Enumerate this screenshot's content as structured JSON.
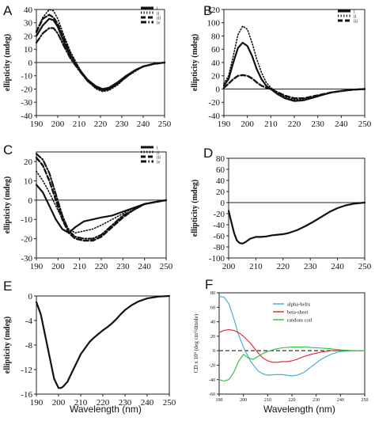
{
  "labels": {
    "A": "A",
    "B": "B",
    "C": "C",
    "D": "D",
    "E": "E",
    "F": "F",
    "wavelength_E": "Wavelength (nm)",
    "wavelength_F": "Wavelength (nm)"
  },
  "chart_data": [
    {
      "id": "A",
      "type": "line",
      "ylabel": "ellipticity (mdeg)",
      "xlim": [
        190,
        250
      ],
      "ylim": [
        -40,
        40
      ],
      "xticks": [
        190,
        200,
        210,
        220,
        230,
        240,
        250
      ],
      "yticks": [
        -40,
        -30,
        -20,
        -10,
        0,
        10,
        20,
        30,
        40
      ],
      "legend": [
        "i",
        "ii",
        "iii",
        "iv"
      ],
      "series": [
        {
          "name": "i",
          "style": "solid",
          "x": [
            190,
            193,
            196,
            198,
            200,
            203,
            206,
            210,
            214,
            218,
            221,
            224,
            228,
            232,
            236,
            240,
            245,
            250
          ],
          "y": [
            20,
            28,
            33,
            32,
            27,
            15,
            5,
            -5,
            -13,
            -18,
            -20,
            -19,
            -15,
            -10,
            -6,
            -3,
            -1,
            0
          ]
        },
        {
          "name": "ii",
          "style": "dotted",
          "x": [
            190,
            193,
            196,
            198,
            200,
            203,
            206,
            210,
            214,
            218,
            221,
            224,
            228,
            232,
            236,
            240,
            245,
            250
          ],
          "y": [
            24,
            34,
            40,
            39,
            33,
            20,
            8,
            -4,
            -14,
            -20,
            -22,
            -21,
            -17,
            -11,
            -7,
            -3,
            -1,
            0
          ]
        },
        {
          "name": "iii",
          "style": "dashed",
          "x": [
            190,
            193,
            196,
            198,
            200,
            203,
            206,
            210,
            214,
            218,
            221,
            224,
            228,
            232,
            236,
            240,
            245,
            250
          ],
          "y": [
            23,
            33,
            36,
            34,
            29,
            18,
            6,
            -5,
            -14,
            -19,
            -21,
            -20,
            -16,
            -11,
            -6,
            -3,
            -1,
            0
          ]
        },
        {
          "name": "iv",
          "style": "dashdot",
          "x": [
            190,
            193,
            196,
            198,
            200,
            203,
            206,
            210,
            214,
            218,
            221,
            224,
            228,
            232,
            236,
            240,
            245,
            250
          ],
          "y": [
            15,
            22,
            26,
            26,
            22,
            12,
            3,
            -6,
            -14,
            -19,
            -21,
            -20,
            -16,
            -11,
            -6,
            -3,
            -1,
            0
          ]
        }
      ]
    },
    {
      "id": "B",
      "type": "line",
      "ylabel": "ellipticity (mdeg)",
      "xlim": [
        190,
        250
      ],
      "ylim": [
        -40,
        120
      ],
      "xticks": [
        190,
        200,
        210,
        220,
        230,
        240,
        250
      ],
      "yticks": [
        -40,
        -20,
        0,
        20,
        40,
        60,
        80,
        100,
        120
      ],
      "legend": [
        "i",
        "ii",
        "iii"
      ],
      "series": [
        {
          "name": "i",
          "style": "solid",
          "x": [
            190,
            192,
            194,
            196,
            198,
            200,
            202,
            204,
            206,
            208,
            210,
            213,
            216,
            220,
            224,
            228,
            232,
            236,
            240,
            245,
            250
          ],
          "y": [
            5,
            15,
            40,
            62,
            70,
            65,
            50,
            30,
            15,
            5,
            0,
            -8,
            -14,
            -18,
            -17,
            -13,
            -9,
            -5,
            -3,
            -1,
            0
          ]
        },
        {
          "name": "ii",
          "style": "dotted",
          "x": [
            190,
            192,
            194,
            196,
            198,
            200,
            202,
            204,
            206,
            208,
            210,
            213,
            216,
            220,
            224,
            228,
            232,
            236,
            240,
            245,
            250
          ],
          "y": [
            8,
            20,
            50,
            82,
            95,
            90,
            70,
            45,
            25,
            10,
            2,
            -6,
            -12,
            -16,
            -15,
            -12,
            -8,
            -5,
            -3,
            -1,
            0
          ]
        },
        {
          "name": "iii",
          "style": "dashed",
          "x": [
            190,
            192,
            194,
            196,
            198,
            200,
            202,
            204,
            206,
            208,
            210,
            213,
            216,
            220,
            224,
            228,
            232,
            236,
            240,
            245,
            250
          ],
          "y": [
            2,
            8,
            15,
            20,
            21,
            20,
            16,
            10,
            5,
            2,
            0,
            -5,
            -10,
            -14,
            -14,
            -11,
            -8,
            -5,
            -3,
            -1,
            0
          ]
        }
      ]
    },
    {
      "id": "C",
      "type": "line",
      "ylabel": "ellipticity (mdeg)",
      "xlim": [
        190,
        250
      ],
      "ylim": [
        -30,
        25
      ],
      "xticks": [
        190,
        200,
        210,
        220,
        230,
        240,
        250
      ],
      "yticks": [
        -30,
        -20,
        -10,
        0,
        10,
        20
      ],
      "legend": [
        "i",
        "ii",
        "iii",
        "iv"
      ],
      "series": [
        {
          "name": "i",
          "style": "solid",
          "x": [
            190,
            193,
            196,
            199,
            202,
            205,
            208,
            212,
            216,
            220,
            225,
            230,
            235,
            240,
            245,
            250
          ],
          "y": [
            8,
            4,
            -3,
            -10,
            -15,
            -17,
            -14,
            -11,
            -10,
            -9,
            -8,
            -6,
            -4,
            -2,
            -1,
            0
          ]
        },
        {
          "name": "ii",
          "style": "dotted",
          "x": [
            190,
            193,
            196,
            199,
            202,
            205,
            208,
            212,
            216,
            220,
            225,
            230,
            235,
            240,
            245,
            250
          ],
          "y": [
            15,
            10,
            4,
            -3,
            -10,
            -15,
            -17,
            -16,
            -15,
            -13,
            -10,
            -7,
            -4,
            -2,
            -1,
            0
          ]
        },
        {
          "name": "iii",
          "style": "dashed",
          "x": [
            190,
            193,
            196,
            199,
            202,
            205,
            208,
            212,
            216,
            220,
            225,
            230,
            235,
            240,
            245,
            250
          ],
          "y": [
            22,
            18,
            10,
            0,
            -10,
            -17,
            -20,
            -21,
            -21,
            -19,
            -14,
            -9,
            -5,
            -2,
            -1,
            0
          ]
        },
        {
          "name": "iv",
          "style": "dashdot",
          "x": [
            190,
            193,
            196,
            199,
            202,
            205,
            208,
            212,
            216,
            220,
            225,
            230,
            235,
            240,
            245,
            250
          ],
          "y": [
            24,
            21,
            14,
            3,
            -8,
            -16,
            -19,
            -20,
            -20,
            -18,
            -13,
            -8,
            -5,
            -2,
            -1,
            0
          ]
        }
      ]
    },
    {
      "id": "D",
      "type": "line",
      "ylabel": "ellipticity (mdeg)",
      "xlim": [
        200,
        250
      ],
      "ylim": [
        -100,
        80
      ],
      "xticks": [
        200,
        210,
        220,
        230,
        240,
        250
      ],
      "yticks": [
        -100,
        -80,
        -60,
        -40,
        -20,
        0,
        20,
        40,
        60,
        80
      ],
      "series": [
        {
          "name": "",
          "style": "solid",
          "x": [
            200,
            201,
            202,
            203,
            204,
            205,
            206,
            208,
            210,
            212,
            214,
            216,
            218,
            220,
            222,
            225,
            228,
            231,
            234,
            237,
            240,
            243,
            246,
            250
          ],
          "y": [
            -15,
            -35,
            -55,
            -68,
            -73,
            -74,
            -72,
            -65,
            -62,
            -62,
            -61,
            -59,
            -58,
            -57,
            -55,
            -50,
            -43,
            -35,
            -26,
            -17,
            -10,
            -5,
            -2,
            0
          ]
        }
      ]
    },
    {
      "id": "E",
      "type": "line",
      "ylabel": "ellipticity (mdeg)",
      "xlabel": "Wavelength (nm)",
      "xlim": [
        190,
        250
      ],
      "ylim": [
        -16,
        0
      ],
      "xticks": [
        190,
        200,
        210,
        220,
        230,
        240,
        250
      ],
      "yticks": [
        -16,
        -12,
        -8,
        -4,
        0
      ],
      "series": [
        {
          "name": "",
          "style": "solid",
          "x": [
            190,
            192,
            194,
            196,
            198,
            200,
            201,
            202,
            204,
            206,
            208,
            210,
            212,
            214,
            216,
            218,
            220,
            222,
            224,
            226,
            228,
            230,
            233,
            236,
            240,
            245,
            250
          ],
          "y": [
            -1,
            -3,
            -6.5,
            -10,
            -13.5,
            -15,
            -15,
            -14.8,
            -14,
            -12.5,
            -11,
            -9.5,
            -8.5,
            -7.5,
            -6.8,
            -6.2,
            -5.6,
            -5.1,
            -4.5,
            -3.8,
            -3,
            -2.3,
            -1.5,
            -0.9,
            -0.4,
            -0.1,
            0
          ]
        }
      ]
    },
    {
      "id": "F",
      "type": "line",
      "ylabel": "CD x 10³ (deg cm²/dmole)",
      "xlabel": "Wavelength (nm)",
      "xlim": [
        190,
        250
      ],
      "ylim": [
        -60,
        80
      ],
      "xticks": [
        190,
        200,
        210,
        220,
        230,
        240,
        250
      ],
      "yticks": [
        -60,
        -40,
        -20,
        0,
        20,
        40,
        60,
        80
      ],
      "reference_line": 0,
      "legend": [
        "alpha-helix",
        "beta-sheet",
        "random coil"
      ],
      "colors": {
        "alpha-helix": "#3fa7d6",
        "beta-sheet": "#e0202c",
        "random coil": "#2bbf3a"
      },
      "series": [
        {
          "name": "alpha-helix",
          "x": [
            190,
            192,
            194,
            196,
            198,
            200,
            203,
            206,
            208,
            210,
            213,
            216,
            218,
            220,
            222,
            225,
            228,
            232,
            236,
            240,
            245,
            250
          ],
          "y": [
            75,
            74,
            65,
            45,
            22,
            5,
            -15,
            -28,
            -32,
            -34,
            -33,
            -33,
            -34,
            -35,
            -34,
            -30,
            -22,
            -12,
            -5,
            -1,
            0,
            0
          ]
        },
        {
          "name": "beta-sheet",
          "x": [
            190,
            192,
            194,
            196,
            198,
            200,
            203,
            206,
            208,
            210,
            212,
            214,
            216,
            218,
            220,
            222,
            225,
            228,
            232,
            236,
            240,
            245,
            250
          ],
          "y": [
            25,
            28,
            29,
            28,
            25,
            20,
            10,
            -3,
            -10,
            -14,
            -16,
            -16,
            -15,
            -15,
            -14,
            -12,
            -8,
            -5,
            -2,
            0,
            0,
            0,
            0
          ]
        },
        {
          "name": "random coil",
          "x": [
            190,
            192,
            194,
            196,
            198,
            200,
            202,
            204,
            206,
            208,
            210,
            213,
            216,
            220,
            225,
            230,
            235,
            240,
            245,
            250
          ],
          "y": [
            -40,
            -42,
            -40,
            -30,
            -15,
            -5,
            -10,
            -12,
            -8,
            -4,
            -1,
            2,
            4,
            5,
            5,
            4,
            3,
            1,
            0,
            0
          ]
        }
      ]
    }
  ]
}
